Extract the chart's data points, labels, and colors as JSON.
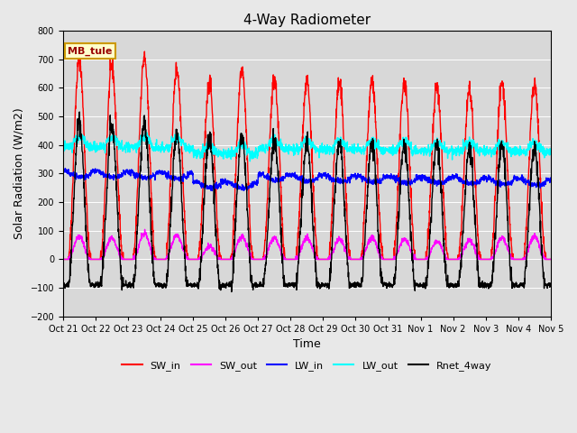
{
  "title": "4-Way Radiometer",
  "xlabel": "Time",
  "ylabel": "Solar Radiation (W/m2)",
  "ylim": [
    -200,
    800
  ],
  "yticks": [
    -200,
    -100,
    0,
    100,
    200,
    300,
    400,
    500,
    600,
    700,
    800
  ],
  "bg_color": "#e8e8e8",
  "plot_bg_color": "#d8d8d8",
  "annotation_text": "MB_tule",
  "annotation_bg": "#ffffcc",
  "annotation_border": "#cc9900",
  "annotation_text_color": "#990000",
  "legend_labels": [
    "SW_in",
    "SW_out",
    "LW_in",
    "LW_out",
    "Rnet_4way"
  ],
  "legend_colors": [
    "red",
    "magenta",
    "blue",
    "cyan",
    "black"
  ],
  "num_days": 15,
  "xtick_labels": [
    "Oct 21",
    "Oct 22",
    "Oct 23",
    "Oct 24",
    "Oct 25",
    "Oct 26",
    "Oct 27",
    "Oct 28",
    "Oct 29",
    "Oct 30",
    "Oct 31",
    "Nov 1",
    "Nov 2",
    "Nov 3",
    "Nov 4",
    "Nov 5"
  ],
  "SW_in_peaks": [
    700,
    675,
    705,
    665,
    620,
    665,
    630,
    620,
    615,
    625,
    615,
    600,
    595,
    615,
    615
  ],
  "SW_out_peaks": [
    80,
    75,
    90,
    85,
    45,
    80,
    75,
    75,
    70,
    75,
    70,
    65,
    65,
    75,
    80
  ],
  "LW_in_base": 315,
  "LW_out_base": 395,
  "Rnet_night": -90,
  "line_width": 1.0
}
